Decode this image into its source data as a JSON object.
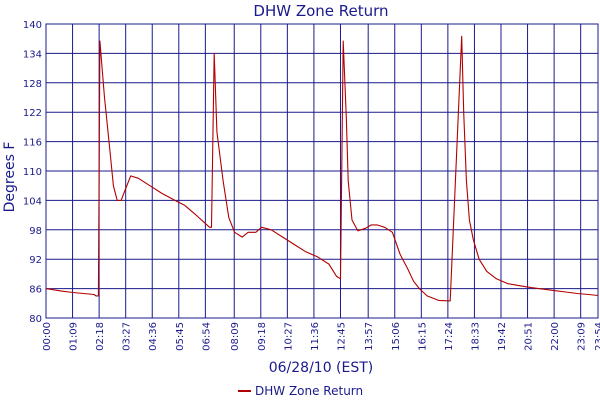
{
  "colors": {
    "series": "#b30000",
    "grid": "#1a1a8c",
    "frame": "#1a1a8c",
    "text": "#1a1a8c",
    "background": "#ffffff"
  },
  "chart_data": {
    "type": "line",
    "title": "DHW Zone Return",
    "xlabel": "06/28/10 (EST)",
    "ylabel": "Degrees F",
    "ylim": [
      80,
      140
    ],
    "xlim": [
      "00:00",
      "23:54"
    ],
    "grid": true,
    "legend_position": "bottom-center",
    "y_ticks": [
      80,
      86,
      92,
      98,
      104,
      110,
      116,
      122,
      128,
      134,
      140
    ],
    "x_ticks": [
      "00:00",
      "01:09",
      "02:18",
      "03:27",
      "04:36",
      "05:45",
      "06:54",
      "08:09",
      "09:18",
      "10:27",
      "11:36",
      "12:45",
      "13:57",
      "15:06",
      "16:15",
      "17:24",
      "18:33",
      "19:42",
      "20:51",
      "22:00",
      "23:09",
      "23:54"
    ],
    "series": [
      {
        "name": "DHW Zone Return",
        "x": [
          "00:00",
          "00:40",
          "01:10",
          "02:05",
          "02:10",
          "02:16",
          "02:20",
          "02:32",
          "02:45",
          "02:55",
          "03:05",
          "03:15",
          "03:25",
          "03:40",
          "04:00",
          "04:30",
          "05:00",
          "05:35",
          "06:00",
          "06:30",
          "07:05",
          "07:10",
          "07:17",
          "07:24",
          "07:40",
          "07:55",
          "08:10",
          "08:30",
          "08:45",
          "09:05",
          "09:20",
          "09:45",
          "10:15",
          "10:45",
          "11:15",
          "11:45",
          "12:15",
          "12:35",
          "12:45",
          "12:52",
          "13:00",
          "13:05",
          "13:15",
          "13:30",
          "13:50",
          "14:05",
          "14:20",
          "14:40",
          "15:00",
          "15:20",
          "15:40",
          "15:55",
          "16:10",
          "16:30",
          "17:00",
          "17:30",
          "18:00",
          "18:05",
          "18:12",
          "18:20",
          "18:30",
          "18:45",
          "19:05",
          "19:30",
          "20:00",
          "20:30",
          "21:00",
          "21:30",
          "22:00",
          "22:30",
          "23:00",
          "23:30",
          "23:54"
        ],
        "values": [
          86.0,
          85.5,
          85.2,
          84.8,
          84.5,
          84.5,
          136.5,
          125.0,
          115.0,
          107.0,
          104.0,
          104.0,
          106.0,
          109.0,
          108.5,
          107.0,
          105.5,
          104.0,
          103.0,
          101.0,
          98.5,
          98.5,
          134.0,
          118.0,
          108.0,
          100.5,
          97.5,
          96.5,
          97.5,
          97.5,
          98.5,
          98.0,
          96.5,
          95.0,
          93.5,
          92.5,
          91.0,
          88.5,
          88.0,
          136.5,
          121.0,
          108.0,
          100.0,
          97.8,
          98.3,
          99.0,
          99.0,
          98.5,
          97.5,
          93.0,
          90.0,
          87.5,
          86.0,
          84.5,
          83.6,
          83.5,
          137.5,
          122.0,
          108.0,
          100.0,
          96.0,
          92.0,
          89.5,
          88.0,
          87.0,
          86.6,
          86.2,
          85.9,
          85.6,
          85.3,
          85.0,
          84.8,
          84.6
        ]
      }
    ]
  }
}
